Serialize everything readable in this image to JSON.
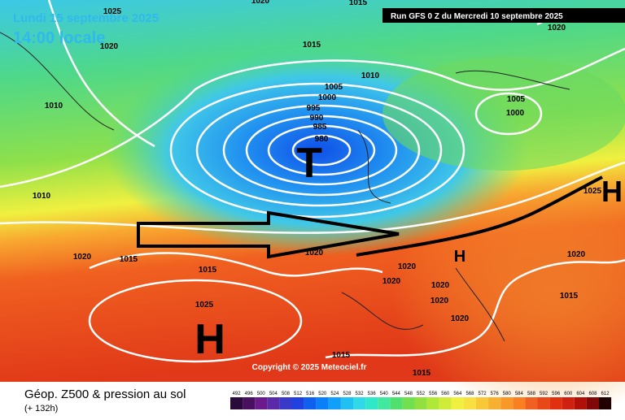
{
  "header": {
    "date": "Lundi 15 septembre 2025",
    "time": "14:00 locale",
    "run": "Run GFS 0 Z du Mercredi 10 septembre 2025"
  },
  "copyright": "Copyright © 2025 Meteociel.fr",
  "centers": [
    "T",
    "H",
    "H",
    "H"
  ],
  "isobar_labels": [
    "1025",
    "1020",
    "1015",
    "1020",
    "1020",
    "1015",
    "1010",
    "1005",
    "1000",
    "995",
    "990",
    "985",
    "980",
    "1005",
    "1000",
    "1010",
    "1010",
    "1025",
    "1020",
    "1015",
    "1015",
    "1020",
    "1020",
    "1020",
    "1020",
    "1020",
    "1025",
    "1020",
    "1020",
    "1015",
    "1015",
    "1015"
  ],
  "legend": {
    "title": "Géop. Z500 & pression au sol",
    "lead": "(+ 132h)",
    "scale": [
      "492",
      "496",
      "500",
      "504",
      "508",
      "512",
      "516",
      "520",
      "524",
      "528",
      "532",
      "536",
      "540",
      "544",
      "548",
      "552",
      "556",
      "560",
      "564",
      "568",
      "572",
      "576",
      "580",
      "584",
      "588",
      "592",
      "596",
      "600",
      "604",
      "608",
      "612"
    ],
    "colors": [
      "#2a0a3a",
      "#4a1060",
      "#6a1a8a",
      "#5a2aa8",
      "#3a3ac8",
      "#2040e0",
      "#1060f0",
      "#0a80f8",
      "#10a0f8",
      "#20c0f0",
      "#30d8e8",
      "#30e8c8",
      "#40e8a0",
      "#50e070",
      "#70e050",
      "#90e040",
      "#b0e838",
      "#d0ec38",
      "#f0f040",
      "#f8e040",
      "#f8c838",
      "#f8b030",
      "#f89828",
      "#f88020",
      "#f06020",
      "#e84818",
      "#e03010",
      "#d02010",
      "#b01008",
      "#800808",
      "#200000"
    ]
  }
}
